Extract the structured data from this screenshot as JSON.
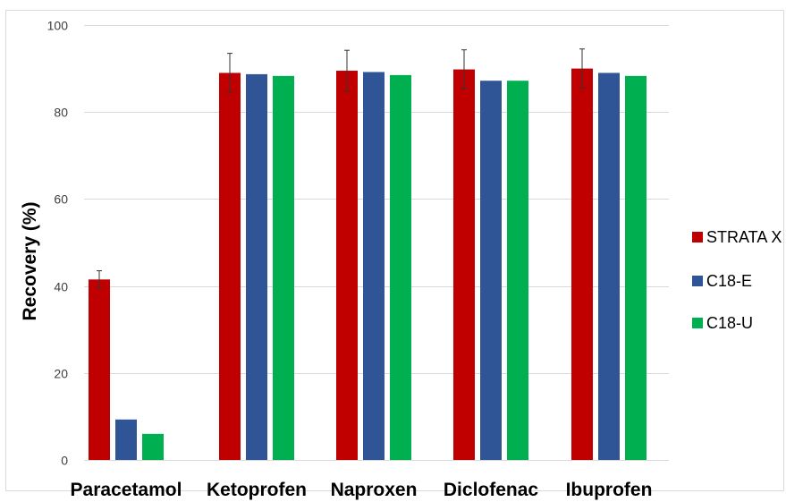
{
  "chart_data": {
    "type": "bar",
    "title": "",
    "xlabel": "",
    "ylabel": "Recovery (%)",
    "ylim": [
      0,
      100
    ],
    "yticks": [
      0,
      20,
      40,
      60,
      80,
      100
    ],
    "grid": true,
    "legend_position": "right",
    "categories": [
      "Paracetamol",
      "Ketoprofen",
      "Naproxen",
      "Diclofenac",
      "Ibuprofen"
    ],
    "series": [
      {
        "name": "STRATA X",
        "color": "#c00000",
        "values": [
          41.5,
          89,
          89.5,
          89.8,
          90
        ],
        "errors": [
          2,
          4.5,
          4.7,
          4.5,
          4.5
        ]
      },
      {
        "name": "C18-E",
        "color": "#2f5597",
        "values": [
          9.3,
          88.7,
          89.2,
          87.2,
          89
        ]
      },
      {
        "name": "C18-U",
        "color": "#00b050",
        "values": [
          6,
          88.3,
          88.5,
          87.2,
          88.3
        ]
      }
    ]
  }
}
